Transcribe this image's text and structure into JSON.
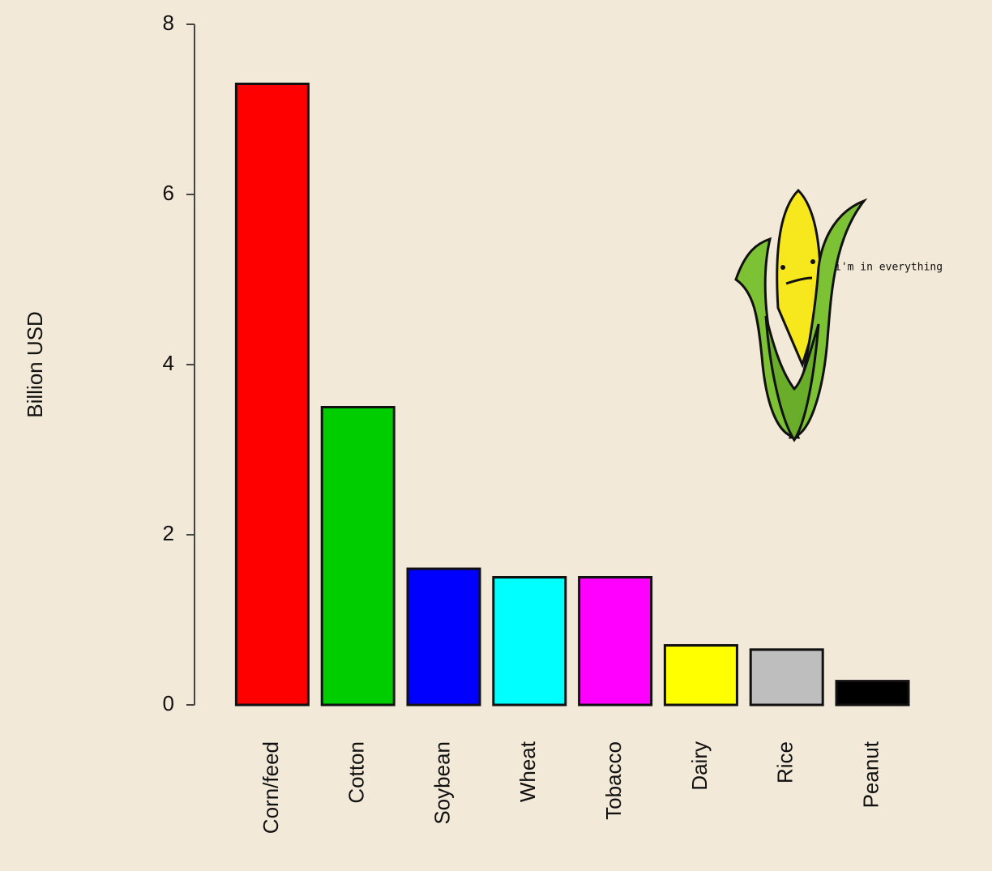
{
  "chart_data": {
    "type": "bar",
    "y_label": "Billion USD",
    "annotation": "i'm in everything",
    "categories": [
      "Corn/feed",
      "Cotton",
      "Soybean",
      "Wheat",
      "Tobacco",
      "Dairy",
      "Rice",
      "Peanut"
    ],
    "values": [
      7.3,
      3.5,
      1.6,
      1.5,
      1.5,
      0.7,
      0.65,
      0.28
    ],
    "colors": [
      "#ff0000",
      "#00cd00",
      "#0000ff",
      "#00ffff",
      "#ff00ff",
      "#ffff00",
      "#bebebe",
      "#000000"
    ],
    "ylim": [
      0,
      8
    ],
    "yticks": [
      0,
      2,
      4,
      6,
      8
    ]
  }
}
